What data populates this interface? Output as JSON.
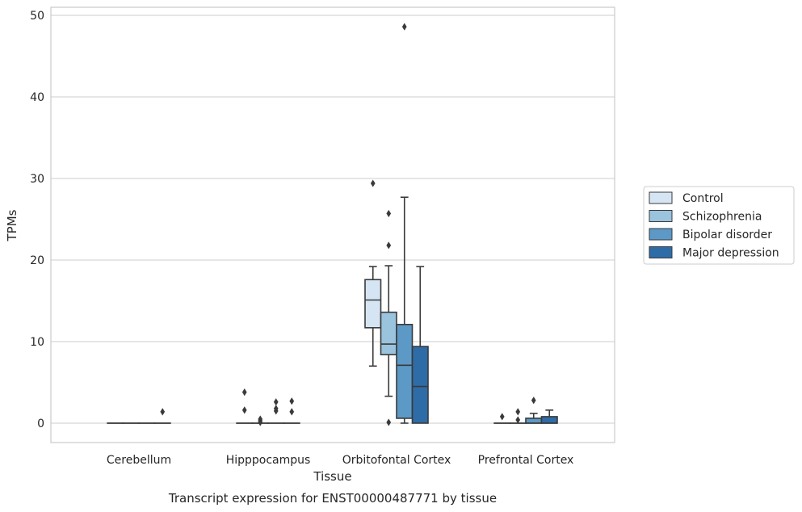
{
  "chart_data": {
    "type": "box",
    "title": "Transcript expression for ENST00000487771 by tissue",
    "xlabel": "Tissue",
    "ylabel": "TPMs",
    "ylim": [
      -2.3,
      51.3
    ],
    "yticks": [
      "0",
      "10",
      "20",
      "30",
      "40",
      "50"
    ],
    "grid": true,
    "legend_position": "right",
    "categories": [
      "Cerebellum",
      "Hipppocampus",
      "Orbitofontal Cortex",
      "Prefrontal Cortex"
    ],
    "series": [
      {
        "name": "Control",
        "color": "#d6e5f3",
        "boxes": [
          {
            "q1": 0,
            "median": 0,
            "q3": 0,
            "whislo": 0,
            "whishi": 0,
            "fliers": []
          },
          {
            "q1": 0,
            "median": 0,
            "q3": 0,
            "whislo": 0,
            "whishi": 0,
            "fliers": [
              3.8,
              1.6
            ]
          },
          {
            "q1": 11.7,
            "median": 15.1,
            "q3": 17.6,
            "whislo": 7.0,
            "whishi": 19.2,
            "fliers": [
              29.4
            ]
          },
          {
            "q1": 0,
            "median": 0,
            "q3": 0,
            "whislo": 0,
            "whishi": 0,
            "fliers": [
              0.8
            ]
          }
        ]
      },
      {
        "name": "Schizophrenia",
        "color": "#9ac3dd",
        "boxes": [
          {
            "q1": 0,
            "median": 0,
            "q3": 0,
            "whislo": 0,
            "whishi": 0,
            "fliers": []
          },
          {
            "q1": 0,
            "median": 0,
            "q3": 0,
            "whislo": 0,
            "whishi": 0,
            "fliers": [
              0.5,
              0.3,
              0.1
            ]
          },
          {
            "q1": 8.4,
            "median": 9.7,
            "q3": 13.6,
            "whislo": 3.3,
            "whishi": 19.3,
            "fliers": [
              25.7,
              21.8,
              0.1
            ]
          },
          {
            "q1": 0,
            "median": 0,
            "q3": 0,
            "whislo": 0,
            "whishi": 0,
            "fliers": [
              1.4,
              0.4
            ]
          }
        ]
      },
      {
        "name": "Bipolar disorder",
        "color": "#5c99c7",
        "boxes": [
          {
            "q1": 0,
            "median": 0,
            "q3": 0,
            "whislo": 0,
            "whishi": 0,
            "fliers": []
          },
          {
            "q1": 0,
            "median": 0,
            "q3": 0,
            "whislo": 0,
            "whishi": 0,
            "fliers": [
              2.6,
              1.8,
              1.5
            ]
          },
          {
            "q1": 0.6,
            "median": 7.1,
            "q3": 12.1,
            "whislo": 0,
            "whishi": 27.7,
            "fliers": [
              48.6
            ]
          },
          {
            "q1": 0,
            "median": 0,
            "q3": 0.6,
            "whislo": 0,
            "whishi": 1.2,
            "fliers": [
              2.8
            ]
          }
        ]
      },
      {
        "name": "Major depression",
        "color": "#2e6ca7",
        "boxes": [
          {
            "q1": 0,
            "median": 0,
            "q3": 0,
            "whislo": 0,
            "whishi": 0,
            "fliers": [
              1.4
            ]
          },
          {
            "q1": 0,
            "median": 0,
            "q3": 0,
            "whislo": 0,
            "whishi": 0,
            "fliers": [
              2.7,
              1.4
            ]
          },
          {
            "q1": 0,
            "median": 4.5,
            "q3": 9.4,
            "whislo": 0,
            "whishi": 19.2,
            "fliers": []
          },
          {
            "q1": 0,
            "median": 0,
            "q3": 0.8,
            "whislo": 0,
            "whishi": 1.6,
            "fliers": []
          }
        ]
      }
    ],
    "colors": {
      "grid": "#cccccc",
      "frame": "#cccccc",
      "lines": "#3a3a3a",
      "text": "#262626"
    }
  }
}
